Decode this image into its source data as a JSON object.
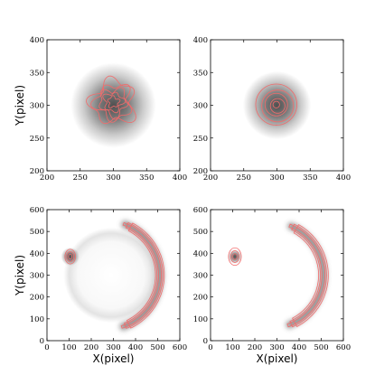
{
  "figure": {
    "contour_color": "#f26b6b",
    "image_dark_color": "#505050",
    "background_color": "#ffffff"
  },
  "chart_data": [
    {
      "type": "heatmap",
      "panel": "top-left",
      "xlabel": "",
      "ylabel": "Y(pixel)",
      "xlim": [
        200,
        400
      ],
      "ylim": [
        200,
        400
      ],
      "xticks": [
        "200",
        "250",
        "300",
        "350",
        "400"
      ],
      "yticks": [
        "200",
        "250",
        "300",
        "350",
        "400"
      ],
      "image": {
        "shape": "blob",
        "center": [
          300,
          300
        ],
        "radius": 40
      },
      "contours": {
        "shape": "irregular-blob",
        "center": [
          300,
          305
        ],
        "radii": [
          8,
          14,
          20,
          26,
          32
        ]
      }
    },
    {
      "type": "heatmap",
      "panel": "top-right",
      "xlabel": "",
      "ylabel": "",
      "xlim": [
        200,
        400
      ],
      "ylim": [
        200,
        400
      ],
      "xticks": [
        "200",
        "250",
        "300",
        "350",
        "400"
      ],
      "yticks": [
        "200",
        "250",
        "300",
        "350",
        "400"
      ],
      "image": {
        "shape": "blob",
        "center": [
          300,
          300
        ],
        "radius": 32
      },
      "contours": {
        "shape": "concentric-circles",
        "center": [
          300,
          300
        ],
        "radii": [
          5,
          11,
          17,
          24,
          31
        ]
      }
    },
    {
      "type": "heatmap",
      "panel": "bottom-left",
      "xlabel": "X(pixel)",
      "ylabel": "Y(pixel)",
      "xlim": [
        0,
        600
      ],
      "ylim": [
        0,
        600
      ],
      "xticks": [
        "0",
        "100",
        "200",
        "300",
        "400",
        "500",
        "600"
      ],
      "yticks": [
        "0",
        "100",
        "200",
        "300",
        "400",
        "500",
        "600"
      ],
      "image": {
        "source": {
          "center": [
            105,
            385
          ],
          "radius": 32
        },
        "arc": {
          "center": [
            260,
            300
          ],
          "radius": 250,
          "start_deg": -70,
          "end_deg": 68,
          "width": 38
        },
        "halo": {
          "center": [
            290,
            300
          ],
          "radius": 215
        }
      },
      "contours": {
        "source": {
          "center": [
            105,
            385
          ],
          "radii": [
            10,
            20,
            30
          ]
        },
        "arc": {
          "center": [
            260,
            300
          ],
          "radius": 250,
          "start_deg": -72,
          "end_deg": 70,
          "widths": [
            12,
            26,
            40
          ]
        }
      }
    },
    {
      "type": "heatmap",
      "panel": "bottom-right",
      "xlabel": "X(pixel)",
      "ylabel": "",
      "xlim": [
        0,
        600
      ],
      "ylim": [
        0,
        600
      ],
      "xticks": [
        "0",
        "100",
        "200",
        "300",
        "400",
        "500",
        "600"
      ],
      "yticks": [
        "0",
        "100",
        "200",
        "300",
        "400",
        "500",
        "600"
      ],
      "image": {
        "source": {
          "center": [
            110,
            385
          ],
          "radius": 25
        },
        "arc": {
          "center": [
            265,
            300
          ],
          "radius": 245,
          "start_deg": -68,
          "end_deg": 66,
          "width": 36
        }
      },
      "contours": {
        "source": {
          "center": [
            110,
            385
          ],
          "radii": [
            12,
            24,
            36
          ]
        },
        "arc": {
          "center": [
            265,
            300
          ],
          "radius": 245,
          "start_deg": -70,
          "end_deg": 68,
          "widths": [
            14,
            28,
            44
          ]
        }
      }
    }
  ]
}
